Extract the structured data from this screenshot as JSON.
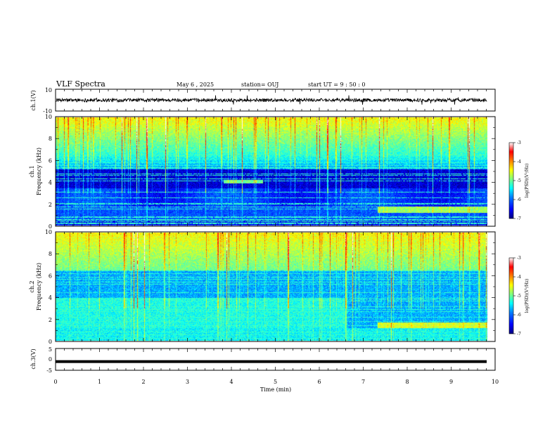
{
  "header": {
    "title": "VLF Spectra",
    "date": "May 6 , 2025",
    "station": "station= OUJ",
    "start": "start UT =  9 : 50 : 0"
  },
  "chart_data": [
    {
      "type": "line",
      "name": "ch1-waveform",
      "ylabel": "ch.1(V)",
      "ylim": [
        -10,
        10
      ],
      "yticks": [
        "10",
        "-10"
      ],
      "xlim": [
        0,
        10
      ],
      "trace": "noisy waveform centered at 0 with amplitude about ±2 V and spikes up to about ±5 V"
    },
    {
      "type": "heatmap",
      "name": "ch1-spectrogram",
      "ylabel": "ch.1\nFrequency (kHz)",
      "ylabel_lines": [
        "ch.1",
        "Frequency (kHz)"
      ],
      "ylim": [
        0,
        10
      ],
      "yticks": [
        "0",
        "2",
        "4",
        "6",
        "8",
        "10"
      ],
      "xlim": [
        0,
        9.8
      ],
      "colorbar": {
        "label": "log(PSD)(V²/Hz)",
        "range": [
          -7,
          -3
        ],
        "ticks": [
          "-3",
          "-4",
          "-5",
          "-6",
          "-7"
        ],
        "colors": [
          "#00007f",
          "#0000ff",
          "#0080ff",
          "#00ffff",
          "#80ff80",
          "#ffff00",
          "#ff8000",
          "#ff0000",
          "#ffffff"
        ]
      }
    },
    {
      "type": "heatmap",
      "name": "ch2-spectrogram",
      "ylabel_lines": [
        "ch.2",
        "Frequency (kHz)"
      ],
      "ylim": [
        0,
        10
      ],
      "yticks": [
        "0",
        "2",
        "4",
        "6",
        "8",
        "10"
      ],
      "xlim": [
        0,
        9.8
      ],
      "colorbar": {
        "label": "log(PSD)(V²/Hz)",
        "range": [
          -7,
          -3
        ],
        "ticks": [
          "-3",
          "-4",
          "-5",
          "-6",
          "-7"
        ]
      }
    },
    {
      "type": "line",
      "name": "ch3-trace",
      "ylabel": "ch.3(V)",
      "ylim": [
        -5,
        5
      ],
      "yticks": [
        "5",
        "0",
        "-5"
      ],
      "xlim": [
        0,
        10
      ],
      "xlabel": "Time (min)",
      "xticks": [
        "0",
        "1",
        "2",
        "3",
        "4",
        "5",
        "6",
        "7",
        "8",
        "9",
        "10"
      ],
      "value": -1
    }
  ]
}
